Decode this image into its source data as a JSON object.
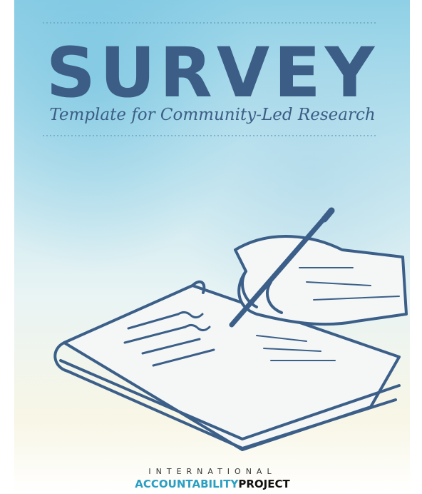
{
  "cover": {
    "title": "SURVEY",
    "subtitle": "Template for Community-Led Research"
  },
  "logo": {
    "line1": "INTERNATIONAL",
    "name_part1": "ACCOUNTABILITY",
    "name_part2": "PROJECT"
  }
}
